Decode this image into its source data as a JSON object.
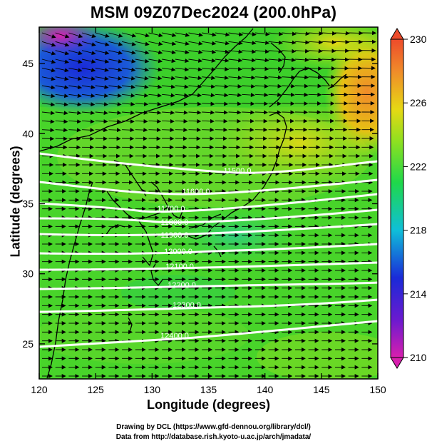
{
  "title": "MSM 09Z07Dec2024 (200.0hPa)",
  "axes": {
    "xlabel": "Longitude (degrees)",
    "ylabel": "Latitude  (degrees)",
    "xticks": [
      "120",
      "125",
      "130",
      "135",
      "140",
      "145",
      "150"
    ],
    "yticks": [
      "25",
      "30",
      "35",
      "40",
      "45"
    ],
    "xlim": [
      120,
      150
    ],
    "ylim": [
      22.5,
      47.6
    ]
  },
  "colorbar": {
    "ticks": [
      "230",
      "226",
      "222",
      "218",
      "214",
      "210"
    ],
    "range": [
      210,
      230
    ],
    "colors": [
      "#d81fae",
      "#1a2ad8",
      "#0fbfd8",
      "#1fd84a",
      "#b2e614",
      "#e6d814",
      "#f08b2a",
      "#ee4b2b"
    ]
  },
  "contours": {
    "color": "#ffffff",
    "labels": [
      "11500.0",
      "11600.0",
      "11700.0",
      "11800.0",
      "11900.0",
      "12000.0",
      "12100.0",
      "12200.0",
      "12300.0",
      "12400.0"
    ]
  },
  "footer": {
    "line1": "Drawing by DCL (https://www.gfd-dennou.org/library/dcl/)",
    "line2": "Data from http://database.rish.kyoto-u.ac.jp/arch/jmadata/"
  }
}
